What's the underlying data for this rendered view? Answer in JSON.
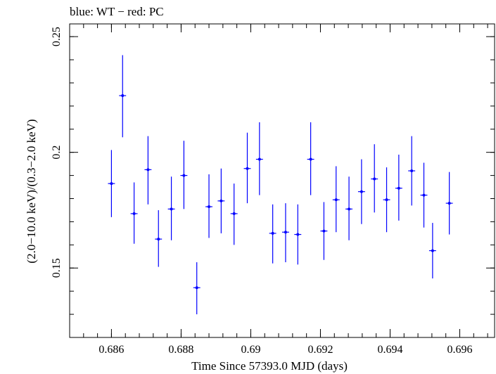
{
  "chart_data": {
    "type": "scatter",
    "title": "blue: WT − red: PC",
    "xlabel": "Time Since 57393.0 MJD (days)",
    "ylabel": "(2.0−10.0 keV)/(0.3−2.0 keV)",
    "xlim": [
      0.6848,
      0.697
    ],
    "ylim": [
      0.12,
      0.2555
    ],
    "x_ticks": [
      0.686,
      0.688,
      0.69,
      0.692,
      0.694,
      0.696
    ],
    "x_tick_labels": [
      "0.686",
      "0.688",
      "0.69",
      "0.692",
      "0.694",
      "0.696"
    ],
    "y_ticks": [
      0.15,
      0.2,
      0.25
    ],
    "y_tick_labels": [
      "0.15",
      "0.2",
      "0.25"
    ],
    "grid": false,
    "series": [
      {
        "name": "WT",
        "color": "#0000ff",
        "points": [
          {
            "x": 0.686,
            "y": 0.1865,
            "xerr": 0.0001,
            "yerr_lo": 0.0145,
            "yerr_hi": 0.0145
          },
          {
            "x": 0.68632,
            "y": 0.2245,
            "xerr": 0.0001,
            "yerr_lo": 0.018,
            "yerr_hi": 0.0175
          },
          {
            "x": 0.68665,
            "y": 0.1735,
            "xerr": 0.0001,
            "yerr_lo": 0.013,
            "yerr_hi": 0.0135
          },
          {
            "x": 0.68705,
            "y": 0.1925,
            "xerr": 0.0001,
            "yerr_lo": 0.015,
            "yerr_hi": 0.0145
          },
          {
            "x": 0.68735,
            "y": 0.1625,
            "xerr": 0.0001,
            "yerr_lo": 0.012,
            "yerr_hi": 0.0125
          },
          {
            "x": 0.68772,
            "y": 0.1755,
            "xerr": 0.0001,
            "yerr_lo": 0.0135,
            "yerr_hi": 0.014
          },
          {
            "x": 0.68808,
            "y": 0.19,
            "xerr": 0.0001,
            "yerr_lo": 0.0145,
            "yerr_hi": 0.015
          },
          {
            "x": 0.68845,
            "y": 0.1415,
            "xerr": 0.0001,
            "yerr_lo": 0.0115,
            "yerr_hi": 0.011
          },
          {
            "x": 0.6888,
            "y": 0.1765,
            "xerr": 0.0001,
            "yerr_lo": 0.0135,
            "yerr_hi": 0.014
          },
          {
            "x": 0.68915,
            "y": 0.179,
            "xerr": 0.0001,
            "yerr_lo": 0.014,
            "yerr_hi": 0.014
          },
          {
            "x": 0.68952,
            "y": 0.1735,
            "xerr": 0.0001,
            "yerr_lo": 0.0135,
            "yerr_hi": 0.013
          },
          {
            "x": 0.6899,
            "y": 0.193,
            "xerr": 0.0001,
            "yerr_lo": 0.015,
            "yerr_hi": 0.0155
          },
          {
            "x": 0.69025,
            "y": 0.197,
            "xerr": 0.0001,
            "yerr_lo": 0.0155,
            "yerr_hi": 0.016
          },
          {
            "x": 0.69063,
            "y": 0.165,
            "xerr": 0.0001,
            "yerr_lo": 0.013,
            "yerr_hi": 0.0125
          },
          {
            "x": 0.691,
            "y": 0.1655,
            "xerr": 0.0001,
            "yerr_lo": 0.013,
            "yerr_hi": 0.0125
          },
          {
            "x": 0.69135,
            "y": 0.1645,
            "xerr": 0.0001,
            "yerr_lo": 0.013,
            "yerr_hi": 0.013
          },
          {
            "x": 0.69172,
            "y": 0.197,
            "xerr": 0.0001,
            "yerr_lo": 0.0155,
            "yerr_hi": 0.016
          },
          {
            "x": 0.6921,
            "y": 0.166,
            "xerr": 0.0001,
            "yerr_lo": 0.0125,
            "yerr_hi": 0.0125
          },
          {
            "x": 0.69245,
            "y": 0.1795,
            "xerr": 0.0001,
            "yerr_lo": 0.014,
            "yerr_hi": 0.0145
          },
          {
            "x": 0.69282,
            "y": 0.1755,
            "xerr": 0.0001,
            "yerr_lo": 0.0135,
            "yerr_hi": 0.014
          },
          {
            "x": 0.69318,
            "y": 0.183,
            "xerr": 0.0001,
            "yerr_lo": 0.014,
            "yerr_hi": 0.014
          },
          {
            "x": 0.69355,
            "y": 0.1885,
            "xerr": 0.0001,
            "yerr_lo": 0.0145,
            "yerr_hi": 0.015
          },
          {
            "x": 0.6939,
            "y": 0.1795,
            "xerr": 0.0001,
            "yerr_lo": 0.014,
            "yerr_hi": 0.014
          },
          {
            "x": 0.69425,
            "y": 0.1845,
            "xerr": 0.0001,
            "yerr_lo": 0.014,
            "yerr_hi": 0.0145
          },
          {
            "x": 0.69462,
            "y": 0.192,
            "xerr": 0.0001,
            "yerr_lo": 0.015,
            "yerr_hi": 0.015
          },
          {
            "x": 0.69497,
            "y": 0.1815,
            "xerr": 0.0001,
            "yerr_lo": 0.014,
            "yerr_hi": 0.014
          },
          {
            "x": 0.69522,
            "y": 0.1575,
            "xerr": 0.0001,
            "yerr_lo": 0.012,
            "yerr_hi": 0.012
          },
          {
            "x": 0.6957,
            "y": 0.178,
            "xerr": 0.0001,
            "yerr_lo": 0.0135,
            "yerr_hi": 0.0135
          }
        ]
      }
    ]
  }
}
